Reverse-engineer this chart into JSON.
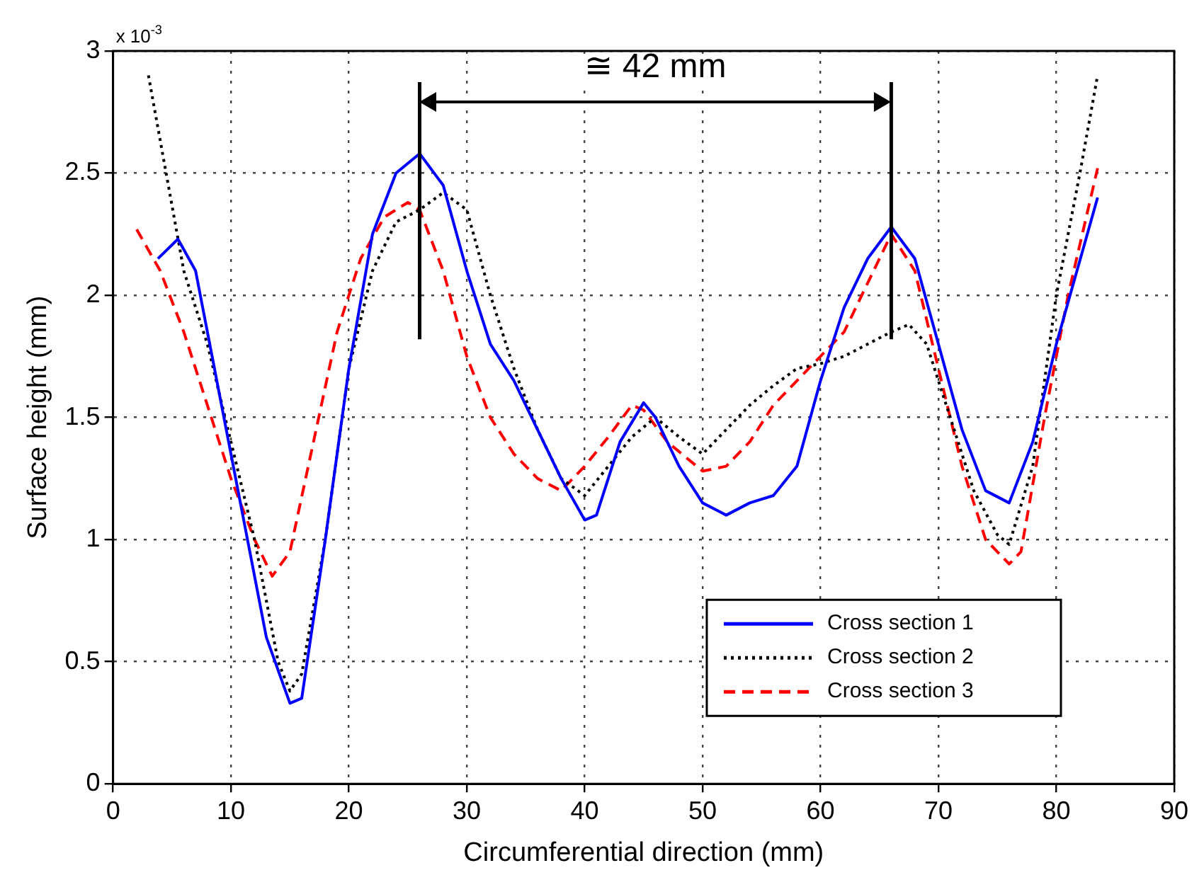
{
  "chart_data": {
    "type": "line",
    "xlabel": "Circumferential direction (mm)",
    "ylabel": "Surface height (mm)",
    "xlim": [
      0,
      90
    ],
    "xticks": [
      0,
      10,
      20,
      30,
      40,
      50,
      60,
      70,
      80,
      90
    ],
    "ylim": [
      0,
      3
    ],
    "yticks": [
      0,
      0.5,
      1,
      1.5,
      2,
      2.5,
      3
    ],
    "grid": true,
    "legend": "bottom right",
    "marker": "none",
    "annotations": [
      "x 10$^{-3}$",
      "≅ 42 mm"
    ],
    "ref_lines": [
      {
        "axis": "x",
        "value": 26
      },
      {
        "axis": "x",
        "value": 66
      }
    ],
    "series": [
      {
        "name": "Cross section 1",
        "color": "#0000ff",
        "line_style": "solid",
        "x": [
          3.8,
          5.5,
          7,
          9,
          11,
          13,
          15,
          16,
          18,
          20,
          22,
          24,
          26,
          28,
          30,
          32,
          34,
          36,
          38,
          40,
          41,
          43,
          45,
          46,
          48,
          50,
          52,
          54,
          56,
          58,
          60,
          62,
          64,
          66,
          68,
          70,
          72,
          74,
          76,
          78,
          80,
          83.5
        ],
        "values": [
          2.15,
          2.23,
          2.1,
          1.6,
          1.1,
          0.6,
          0.33,
          0.35,
          1.0,
          1.7,
          2.25,
          2.5,
          2.58,
          2.45,
          2.1,
          1.8,
          1.65,
          1.45,
          1.25,
          1.08,
          1.1,
          1.4,
          1.56,
          1.5,
          1.3,
          1.15,
          1.1,
          1.15,
          1.18,
          1.3,
          1.65,
          1.95,
          2.15,
          2.28,
          2.15,
          1.8,
          1.45,
          1.2,
          1.15,
          1.4,
          1.8,
          2.4
        ]
      },
      {
        "name": "Cross section 2",
        "color": "#000000",
        "line_style": "dotted",
        "x": [
          3,
          4.5,
          6,
          8,
          10,
          12,
          14,
          15,
          16,
          18,
          20,
          22,
          24,
          26,
          28,
          30,
          32,
          34,
          36,
          38,
          40,
          42,
          44,
          46,
          48,
          50,
          52,
          54,
          56,
          58,
          60,
          62,
          64,
          66,
          67.5,
          69,
          71,
          73,
          75,
          76,
          78,
          80,
          82,
          83.5
        ],
        "values": [
          2.9,
          2.5,
          2.1,
          1.8,
          1.4,
          1.0,
          0.5,
          0.38,
          0.45,
          1.0,
          1.7,
          2.1,
          2.3,
          2.35,
          2.42,
          2.35,
          2.0,
          1.7,
          1.45,
          1.25,
          1.18,
          1.3,
          1.42,
          1.5,
          1.42,
          1.35,
          1.45,
          1.55,
          1.63,
          1.7,
          1.72,
          1.75,
          1.8,
          1.85,
          1.88,
          1.8,
          1.5,
          1.2,
          1.02,
          0.98,
          1.3,
          2.0,
          2.5,
          2.9
        ]
      },
      {
        "name": "Cross section 3",
        "color": "#ff0000",
        "line_style": "dashed",
        "x": [
          2,
          4,
          6,
          8,
          10,
          12,
          13.5,
          15,
          17,
          19,
          21,
          23,
          25,
          26,
          28,
          30,
          32,
          34,
          36,
          38,
          40,
          42,
          44,
          45,
          47,
          50,
          52,
          54,
          56,
          58,
          60,
          62,
          64,
          66,
          68,
          70,
          72,
          74,
          76,
          77,
          79,
          81,
          83.5
        ],
        "values": [
          2.27,
          2.1,
          1.85,
          1.55,
          1.25,
          1.0,
          0.85,
          0.95,
          1.4,
          1.85,
          2.15,
          2.32,
          2.38,
          2.35,
          2.1,
          1.75,
          1.5,
          1.35,
          1.25,
          1.2,
          1.3,
          1.42,
          1.55,
          1.53,
          1.4,
          1.28,
          1.3,
          1.4,
          1.55,
          1.65,
          1.75,
          1.85,
          2.05,
          2.25,
          2.1,
          1.7,
          1.3,
          1.0,
          0.9,
          0.95,
          1.5,
          2.0,
          2.52
        ]
      }
    ]
  }
}
